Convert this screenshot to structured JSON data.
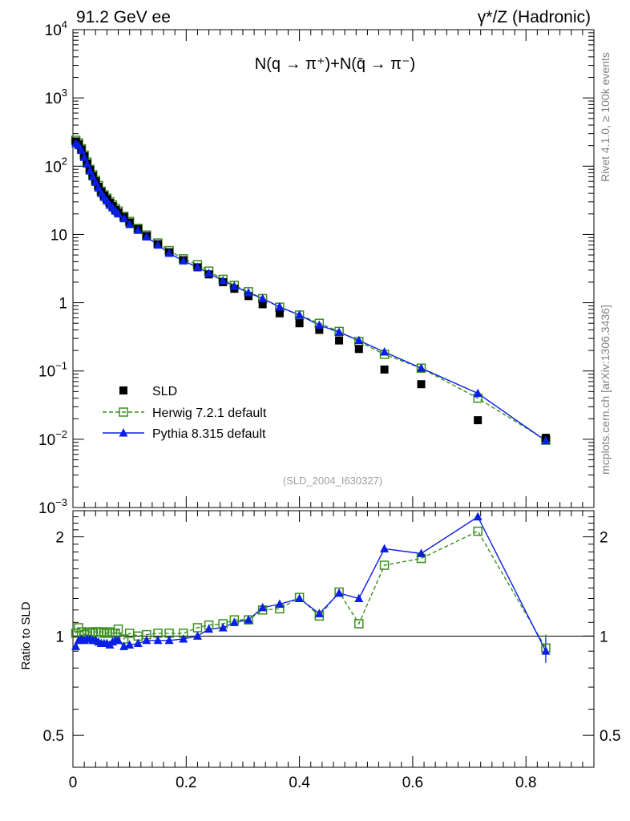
{
  "header": {
    "left": "91.2 GeV ee",
    "right": "γ*/Z (Hadronic)"
  },
  "side_labels": {
    "rivet": "Rivet 4.1.0, ≥ 100k events",
    "mcplots": "mcplots.cern.ch [arXiv:1306.3436]"
  },
  "watermark": "(SLD_2004_I630327)",
  "colors": {
    "data": "#000000",
    "herwig": "#3a8f1e",
    "pythia": "#0a1fe6"
  },
  "chart_data": [
    {
      "name": "main",
      "type": "scatter",
      "yscale": "log",
      "title": "N(q → π⁺)+N(q̄ → π⁻)",
      "xlim": [
        0,
        0.92
      ],
      "ylim": [
        0.001,
        10000
      ],
      "yticks": [
        {
          "v": 0.001,
          "b": "10",
          "e": "−3"
        },
        {
          "v": 0.01,
          "b": "10",
          "e": "−2"
        },
        {
          "v": 0.1,
          "b": "10",
          "e": "−1"
        },
        {
          "v": 1,
          "b": "1",
          "e": ""
        },
        {
          "v": 10,
          "b": "10",
          "e": ""
        },
        {
          "v": 100,
          "b": "10",
          "e": "2"
        },
        {
          "v": 1000,
          "b": "10",
          "e": "3"
        },
        {
          "v": 10000,
          "b": "10",
          "e": "4"
        }
      ],
      "x": [
        0.005,
        0.01,
        0.015,
        0.02,
        0.025,
        0.03,
        0.035,
        0.04,
        0.045,
        0.05,
        0.055,
        0.06,
        0.065,
        0.07,
        0.075,
        0.08,
        0.09,
        0.1,
        0.115,
        0.13,
        0.15,
        0.17,
        0.195,
        0.22,
        0.24,
        0.265,
        0.285,
        0.31,
        0.335,
        0.365,
        0.4,
        0.435,
        0.47,
        0.505,
        0.55,
        0.615,
        0.715,
        0.835
      ],
      "series": [
        {
          "name": "SLD",
          "style": "data",
          "values": [
            230,
            210,
            175,
            140,
            110,
            88,
            72,
            60,
            50,
            42,
            37,
            33,
            29,
            26,
            23,
            21,
            18,
            15,
            12,
            9.5,
            7.2,
            5.5,
            4.2,
            3.3,
            2.6,
            2.0,
            1.6,
            1.25,
            0.95,
            0.7,
            0.5,
            0.4,
            0.28,
            0.21,
            0.105,
            0.064,
            0.019,
            0.0105
          ]
        },
        {
          "name": "Herwig 7.2.1 default",
          "style": "herwig",
          "values": [
            240,
            220,
            180,
            145,
            115,
            90,
            75,
            62,
            52,
            43,
            38,
            34,
            30,
            27,
            24,
            22,
            18.5,
            15.5,
            12.3,
            9.8,
            7.5,
            5.8,
            4.4,
            3.6,
            2.9,
            2.2,
            1.8,
            1.45,
            1.15,
            0.86,
            0.66,
            0.5,
            0.38,
            0.27,
            0.175,
            0.11,
            0.04,
            0.0097
          ]
        },
        {
          "name": "Pythia 8.315 default",
          "style": "pythia",
          "values": [
            215,
            200,
            170,
            135,
            108,
            85,
            70,
            58,
            48,
            40,
            35,
            31,
            27,
            24.5,
            22,
            20,
            17,
            14,
            11.5,
            9.2,
            7.0,
            5.3,
            4.1,
            3.3,
            2.7,
            2.1,
            1.75,
            1.4,
            1.15,
            0.87,
            0.66,
            0.47,
            0.37,
            0.28,
            0.19,
            0.11,
            0.047,
            0.0095
          ]
        }
      ],
      "legend": [
        {
          "label": "SLD",
          "style": "data"
        },
        {
          "label": "Herwig 7.2.1 default",
          "style": "herwig"
        },
        {
          "label": "Pythia 8.315 default",
          "style": "pythia"
        }
      ]
    },
    {
      "name": "ratio",
      "type": "line",
      "yscale": "log",
      "ylabel": "Ratio to SLD",
      "xlim": [
        0,
        0.92
      ],
      "ylim": [
        0.4,
        2.4
      ],
      "yticks": [
        {
          "v": 0.5,
          "t": "0.5"
        },
        {
          "v": 1,
          "t": "1"
        },
        {
          "v": 2,
          "t": "2"
        }
      ],
      "xticks": [
        {
          "v": 0,
          "t": "0"
        },
        {
          "v": 0.2,
          "t": "0.2"
        },
        {
          "v": 0.4,
          "t": "0.4"
        },
        {
          "v": 0.6,
          "t": "0.6"
        },
        {
          "v": 0.8,
          "t": "0.8"
        }
      ],
      "x": [
        0.005,
        0.01,
        0.015,
        0.02,
        0.025,
        0.03,
        0.035,
        0.04,
        0.045,
        0.05,
        0.055,
        0.06,
        0.065,
        0.07,
        0.075,
        0.08,
        0.09,
        0.1,
        0.115,
        0.13,
        0.15,
        0.17,
        0.195,
        0.22,
        0.24,
        0.265,
        0.285,
        0.31,
        0.335,
        0.365,
        0.4,
        0.435,
        0.47,
        0.505,
        0.55,
        0.615,
        0.715,
        0.835
      ],
      "series": [
        {
          "name": "Herwig 7.2.1 default",
          "style": "herwig",
          "values": [
            1.02,
            1.06,
            1.03,
            1.01,
            1.02,
            1.03,
            1.02,
            1.03,
            1.03,
            1.03,
            1.02,
            1.02,
            1.03,
            1.02,
            1.02,
            1.05,
            0.98,
            1.02,
            1.0,
            1.01,
            1.02,
            1.02,
            1.02,
            1.06,
            1.08,
            1.09,
            1.12,
            1.12,
            1.2,
            1.21,
            1.31,
            1.15,
            1.36,
            1.09,
            1.64,
            1.72,
            2.08,
            0.92
          ]
        },
        {
          "name": "Pythia 8.315 default",
          "style": "pythia",
          "values": [
            0.93,
            0.97,
            0.98,
            0.97,
            0.98,
            0.98,
            0.97,
            0.97,
            0.96,
            0.95,
            0.95,
            0.95,
            0.94,
            0.96,
            0.97,
            0.97,
            0.93,
            0.94,
            0.95,
            0.97,
            0.97,
            0.97,
            0.98,
            1.0,
            1.05,
            1.06,
            1.1,
            1.12,
            1.22,
            1.25,
            1.3,
            1.17,
            1.35,
            1.3,
            1.84,
            1.78,
            2.3,
            0.9
          ]
        }
      ]
    }
  ]
}
